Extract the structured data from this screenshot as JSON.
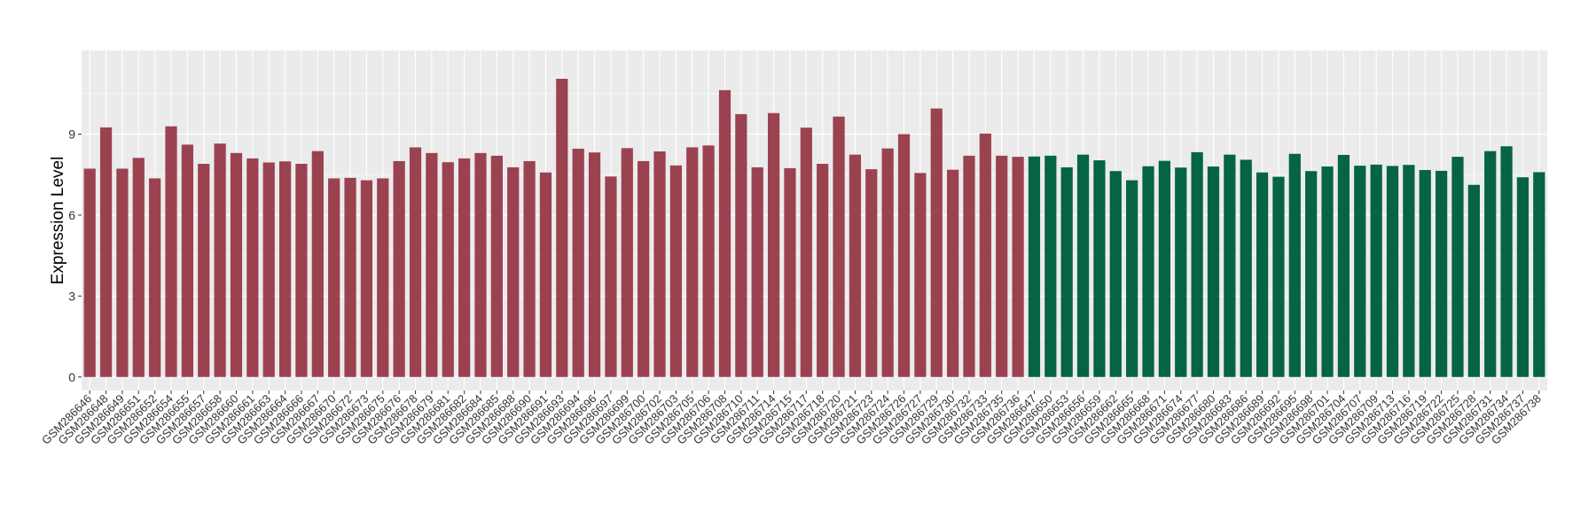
{
  "chart_data": {
    "type": "bar",
    "title": "",
    "xlabel": "",
    "ylabel": "Expression Level",
    "ylim": [
      -0.5,
      12.1
    ],
    "yticks": [
      0,
      3,
      6,
      9
    ],
    "grid": true,
    "legend": "none",
    "colors": {
      "groupA": "#9B4251",
      "groupB": "#046444",
      "panel": "#EBEBEB",
      "gridline": "#FFFFFF"
    },
    "categories": [
      "GSM286646",
      "GSM286648",
      "GSM286649",
      "GSM286651",
      "GSM286652",
      "GSM286654",
      "GSM286655",
      "GSM286657",
      "GSM286658",
      "GSM286660",
      "GSM286661",
      "GSM286663",
      "GSM286664",
      "GSM286666",
      "GSM286667",
      "GSM286670",
      "GSM286672",
      "GSM286673",
      "GSM286675",
      "GSM286676",
      "GSM286678",
      "GSM286679",
      "GSM286681",
      "GSM286682",
      "GSM286684",
      "GSM286685",
      "GSM286688",
      "GSM286690",
      "GSM286691",
      "GSM286693",
      "GSM286694",
      "GSM286696",
      "GSM286697",
      "GSM286699",
      "GSM286700",
      "GSM286702",
      "GSM286703",
      "GSM286705",
      "GSM286706",
      "GSM286708",
      "GSM286710",
      "GSM286711",
      "GSM286714",
      "GSM286715",
      "GSM286717",
      "GSM286718",
      "GSM286720",
      "GSM286721",
      "GSM286723",
      "GSM286724",
      "GSM286726",
      "GSM286727",
      "GSM286729",
      "GSM286730",
      "GSM286732",
      "GSM286733",
      "GSM286735",
      "GSM286736",
      "GSM286647",
      "GSM286650",
      "GSM286653",
      "GSM286656",
      "GSM286659",
      "GSM286662",
      "GSM286665",
      "GSM286668",
      "GSM286671",
      "GSM286674",
      "GSM286677",
      "GSM286680",
      "GSM286683",
      "GSM286686",
      "GSM286689",
      "GSM286692",
      "GSM286695",
      "GSM286698",
      "GSM286701",
      "GSM286704",
      "GSM286707",
      "GSM286709",
      "GSM286713",
      "GSM286716",
      "GSM286719",
      "GSM286722",
      "GSM286725",
      "GSM286728",
      "GSM286731",
      "GSM286734",
      "GSM286737",
      "GSM286738"
    ],
    "values": [
      7.72,
      9.25,
      7.72,
      8.12,
      7.36,
      9.29,
      8.61,
      7.9,
      8.65,
      8.3,
      8.1,
      7.95,
      7.99,
      7.9,
      8.37,
      7.36,
      7.38,
      7.29,
      7.36,
      8.0,
      8.51,
      8.3,
      7.96,
      8.1,
      8.3,
      8.2,
      7.77,
      8.0,
      7.58,
      11.05,
      8.46,
      8.32,
      7.43,
      8.48,
      8.0,
      8.36,
      7.84,
      8.51,
      8.58,
      10.63,
      9.74,
      7.77,
      9.78,
      7.74,
      9.24,
      7.9,
      9.65,
      8.24,
      7.7,
      8.47,
      9.0,
      7.56,
      9.95,
      7.68,
      8.2,
      9.02,
      8.2,
      8.16,
      8.17,
      8.2,
      7.77,
      8.24,
      8.03,
      7.63,
      7.29,
      7.81,
      8.01,
      7.76,
      8.33,
      7.8,
      8.24,
      8.05,
      7.58,
      7.42,
      8.27,
      7.63,
      7.8,
      8.23,
      7.83,
      7.87,
      7.82,
      7.86,
      7.67,
      7.64,
      8.16,
      7.12,
      8.37,
      8.55,
      7.4,
      7.59
    ],
    "groupA_count": 58
  }
}
